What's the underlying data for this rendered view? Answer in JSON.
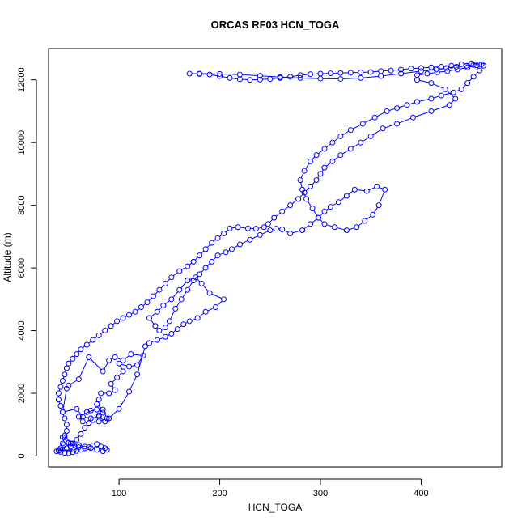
{
  "chart_data": {
    "type": "line",
    "title": "ORCAS RF03 HCN_TOGA",
    "xlabel": "HCN_TOGA",
    "ylabel": "Altitude (m)",
    "xlim": [
      30,
      480
    ],
    "ylim": [
      -350,
      13000
    ],
    "xticks": [
      100,
      200,
      300,
      400
    ],
    "yticks": [
      0,
      2000,
      4000,
      6000,
      8000,
      10000,
      12000
    ],
    "grid": false,
    "legend": "none",
    "color": "#0000ff",
    "marker": "open-circle",
    "series": [
      {
        "name": "",
        "points": [
          [
            38,
            150
          ],
          [
            42,
            200
          ],
          [
            48,
            250
          ],
          [
            52,
            300
          ],
          [
            45,
            350
          ],
          [
            40,
            180
          ],
          [
            55,
            200
          ],
          [
            60,
            280
          ],
          [
            50,
            420
          ],
          [
            44,
            600
          ],
          [
            46,
            650
          ],
          [
            52,
            400
          ],
          [
            58,
            520
          ],
          [
            62,
            700
          ],
          [
            66,
            900
          ],
          [
            70,
            1050
          ],
          [
            64,
            1100
          ],
          [
            60,
            1250
          ],
          [
            72,
            1450
          ],
          [
            68,
            1400
          ],
          [
            78,
            1480
          ],
          [
            84,
            1380
          ],
          [
            80,
            1300
          ],
          [
            74,
            1150
          ],
          [
            70,
            1050
          ],
          [
            80,
            1100
          ],
          [
            88,
            1200
          ],
          [
            84,
            1480
          ],
          [
            78,
            1650
          ],
          [
            80,
            1800
          ],
          [
            82,
            2000
          ],
          [
            90,
            2000
          ],
          [
            96,
            2100
          ],
          [
            92,
            2300
          ],
          [
            98,
            2500
          ],
          [
            104,
            2700
          ],
          [
            100,
            2950
          ],
          [
            110,
            2850
          ],
          [
            118,
            2900
          ],
          [
            124,
            3200
          ],
          [
            112,
            3250
          ],
          [
            104,
            3050
          ],
          [
            96,
            3150
          ],
          [
            90,
            3050
          ],
          [
            84,
            2700
          ],
          [
            70,
            3150
          ],
          [
            60,
            2450
          ],
          [
            50,
            2250
          ],
          [
            48,
            2150
          ],
          [
            44,
            1400
          ],
          [
            58,
            1500
          ],
          [
            64,
            1250
          ],
          [
            72,
            1200
          ],
          [
            80,
            1250
          ],
          [
            86,
            1100
          ],
          [
            90,
            1200
          ],
          [
            100,
            1500
          ],
          [
            110,
            2050
          ],
          [
            118,
            2600
          ],
          [
            126,
            3500
          ],
          [
            130,
            3600
          ],
          [
            138,
            3700
          ],
          [
            146,
            3800
          ],
          [
            152,
            3900
          ],
          [
            158,
            4050
          ],
          [
            164,
            4200
          ],
          [
            170,
            4300
          ],
          [
            178,
            4400
          ],
          [
            186,
            4600
          ],
          [
            196,
            4750
          ],
          [
            204,
            5000
          ],
          [
            190,
            5200
          ],
          [
            182,
            5500
          ],
          [
            176,
            5700
          ],
          [
            168,
            5600
          ],
          [
            160,
            5300
          ],
          [
            152,
            5000
          ],
          [
            144,
            4800
          ],
          [
            138,
            4600
          ],
          [
            130,
            4400
          ],
          [
            136,
            4150
          ],
          [
            140,
            4000
          ],
          [
            146,
            4100
          ],
          [
            150,
            4300
          ],
          [
            156,
            4700
          ],
          [
            162,
            5000
          ],
          [
            168,
            5300
          ],
          [
            174,
            5600
          ],
          [
            180,
            5800
          ],
          [
            186,
            6000
          ],
          [
            192,
            6200
          ],
          [
            198,
            6400
          ],
          [
            206,
            6500
          ],
          [
            212,
            6600
          ],
          [
            220,
            6750
          ],
          [
            230,
            6900
          ],
          [
            240,
            7050
          ],
          [
            250,
            7200
          ],
          [
            256,
            7250
          ],
          [
            262,
            7230
          ],
          [
            270,
            7100
          ],
          [
            282,
            7200
          ],
          [
            290,
            7400
          ],
          [
            298,
            7600
          ],
          [
            304,
            7800
          ],
          [
            310,
            7950
          ],
          [
            318,
            8100
          ],
          [
            326,
            8300
          ],
          [
            334,
            8500
          ],
          [
            346,
            8450
          ],
          [
            356,
            8600
          ],
          [
            364,
            8500
          ],
          [
            358,
            8000
          ],
          [
            352,
            7700
          ],
          [
            344,
            7500
          ],
          [
            336,
            7300
          ],
          [
            326,
            7200
          ],
          [
            314,
            7300
          ],
          [
            304,
            7400
          ],
          [
            298,
            7600
          ],
          [
            292,
            7900
          ],
          [
            286,
            8200
          ],
          [
            282,
            8500
          ],
          [
            280,
            8800
          ],
          [
            284,
            9100
          ],
          [
            290,
            9400
          ],
          [
            296,
            9600
          ],
          [
            304,
            9800
          ],
          [
            312,
            10000
          ],
          [
            320,
            10200
          ],
          [
            330,
            10400
          ],
          [
            342,
            10600
          ],
          [
            354,
            10800
          ],
          [
            366,
            11000
          ],
          [
            376,
            11100
          ],
          [
            386,
            11200
          ],
          [
            396,
            11300
          ],
          [
            410,
            11400
          ],
          [
            420,
            11500
          ],
          [
            432,
            11600
          ],
          [
            440,
            11700
          ],
          [
            446,
            11900
          ],
          [
            452,
            12100
          ],
          [
            458,
            12300
          ],
          [
            462,
            12450
          ],
          [
            460,
            12500
          ],
          [
            450,
            12530
          ],
          [
            440,
            12500
          ],
          [
            430,
            12450
          ],
          [
            420,
            12420
          ],
          [
            410,
            12400
          ],
          [
            400,
            12380
          ],
          [
            390,
            12360
          ],
          [
            380,
            12330
          ],
          [
            370,
            12300
          ],
          [
            360,
            12280
          ],
          [
            350,
            12250
          ],
          [
            340,
            12240
          ],
          [
            330,
            12230
          ],
          [
            320,
            12220
          ],
          [
            310,
            12210
          ],
          [
            300,
            12200
          ],
          [
            290,
            12180
          ],
          [
            280,
            12150
          ],
          [
            270,
            12100
          ],
          [
            260,
            12060
          ],
          [
            250,
            12030
          ],
          [
            240,
            12010
          ],
          [
            230,
            12000
          ],
          [
            220,
            12020
          ],
          [
            210,
            12060
          ],
          [
            200,
            12120
          ],
          [
            190,
            12170
          ],
          [
            180,
            12190
          ],
          [
            170,
            12200
          ],
          [
            180,
            12200
          ],
          [
            200,
            12190
          ],
          [
            220,
            12170
          ],
          [
            240,
            12130
          ],
          [
            260,
            12090
          ],
          [
            280,
            12060
          ],
          [
            300,
            12040
          ],
          [
            320,
            12030
          ],
          [
            340,
            12060
          ],
          [
            360,
            12120
          ],
          [
            380,
            12200
          ],
          [
            400,
            12280
          ],
          [
            415,
            12330
          ],
          [
            425,
            12380
          ],
          [
            435,
            12420
          ],
          [
            445,
            12450
          ],
          [
            452,
            12480
          ],
          [
            458,
            12500
          ],
          [
            455,
            12460
          ],
          [
            446,
            12400
          ],
          [
            436,
            12330
          ],
          [
            426,
            12280
          ],
          [
            416,
            12240
          ],
          [
            406,
            12200
          ],
          [
            396,
            12150
          ],
          [
            396,
            12000
          ],
          [
            410,
            11900
          ],
          [
            424,
            11700
          ],
          [
            434,
            11400
          ],
          [
            428,
            11200
          ],
          [
            410,
            11000
          ],
          [
            392,
            10800
          ],
          [
            376,
            10600
          ],
          [
            362,
            10450
          ],
          [
            350,
            10200
          ],
          [
            340,
            10000
          ],
          [
            330,
            9800
          ],
          [
            320,
            9600
          ],
          [
            312,
            9400
          ],
          [
            304,
            9200
          ],
          [
            300,
            9000
          ],
          [
            296,
            8800
          ],
          [
            290,
            8600
          ],
          [
            284,
            8400
          ],
          [
            278,
            8200
          ],
          [
            270,
            8000
          ],
          [
            262,
            7800
          ],
          [
            254,
            7600
          ],
          [
            248,
            7400
          ],
          [
            244,
            7300
          ],
          [
            236,
            7250
          ],
          [
            228,
            7260
          ],
          [
            218,
            7300
          ],
          [
            210,
            7260
          ],
          [
            204,
            7100
          ],
          [
            198,
            6950
          ],
          [
            192,
            6800
          ],
          [
            186,
            6600
          ],
          [
            180,
            6400
          ],
          [
            174,
            6200
          ],
          [
            168,
            6050
          ],
          [
            160,
            5900
          ],
          [
            152,
            5700
          ],
          [
            146,
            5500
          ],
          [
            140,
            5300
          ],
          [
            134,
            5100
          ],
          [
            128,
            4900
          ],
          [
            122,
            4750
          ],
          [
            116,
            4600
          ],
          [
            110,
            4500
          ],
          [
            104,
            4400
          ],
          [
            98,
            4300
          ],
          [
            92,
            4150
          ],
          [
            86,
            4000
          ],
          [
            80,
            3850
          ],
          [
            74,
            3700
          ],
          [
            68,
            3550
          ],
          [
            62,
            3400
          ],
          [
            58,
            3250
          ],
          [
            54,
            3100
          ],
          [
            50,
            2950
          ],
          [
            48,
            2800
          ],
          [
            46,
            2600
          ],
          [
            44,
            2400
          ],
          [
            42,
            2200
          ],
          [
            40,
            2000
          ],
          [
            40,
            1800
          ],
          [
            42,
            1600
          ],
          [
            44,
            1400
          ],
          [
            46,
            1200
          ],
          [
            48,
            1000
          ],
          [
            48,
            800
          ],
          [
            46,
            600
          ],
          [
            44,
            400
          ],
          [
            42,
            250
          ],
          [
            40,
            170
          ],
          [
            42,
            130
          ],
          [
            46,
            100
          ],
          [
            50,
            90
          ],
          [
            54,
            120
          ],
          [
            58,
            160
          ],
          [
            62,
            200
          ],
          [
            66,
            240
          ],
          [
            70,
            280
          ],
          [
            74,
            330
          ],
          [
            78,
            380
          ],
          [
            82,
            300
          ],
          [
            86,
            250
          ],
          [
            88,
            200
          ],
          [
            84,
            150
          ],
          [
            78,
            200
          ],
          [
            72,
            250
          ],
          [
            66,
            300
          ],
          [
            60,
            350
          ],
          [
            54,
            400
          ]
        ]
      }
    ]
  }
}
